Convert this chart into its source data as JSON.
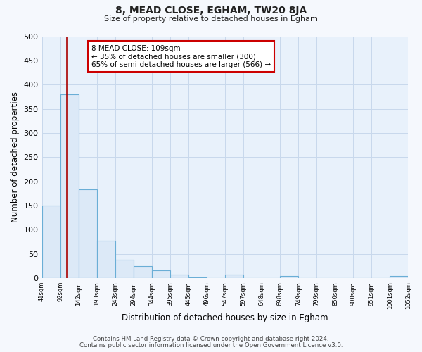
{
  "title": "8, MEAD CLOSE, EGHAM, TW20 8JA",
  "subtitle": "Size of property relative to detached houses in Egham",
  "xlabel": "Distribution of detached houses by size in Egham",
  "ylabel": "Number of detached properties",
  "bar_edges": [
    41,
    92,
    142,
    193,
    243,
    294,
    344,
    395,
    445,
    496,
    547,
    597,
    648,
    698,
    749,
    799,
    850,
    900,
    951,
    1001,
    1052
  ],
  "bar_heights": [
    150,
    380,
    183,
    77,
    38,
    25,
    16,
    7,
    2,
    0,
    7,
    0,
    0,
    5,
    0,
    0,
    0,
    0,
    0,
    5
  ],
  "bar_color": "#dce9f7",
  "bar_edge_color": "#6aaed6",
  "red_line_x": 109,
  "annotation_title": "8 MEAD CLOSE: 109sqm",
  "annotation_line1": "← 35% of detached houses are smaller (300)",
  "annotation_line2": "65% of semi-detached houses are larger (566) →",
  "annotation_box_facecolor": "#ffffff",
  "annotation_border_color": "#cc0000",
  "ylim": [
    0,
    500
  ],
  "yticks": [
    0,
    50,
    100,
    150,
    200,
    250,
    300,
    350,
    400,
    450,
    500
  ],
  "tick_labels": [
    "41sqm",
    "92sqm",
    "142sqm",
    "193sqm",
    "243sqm",
    "294sqm",
    "344sqm",
    "395sqm",
    "445sqm",
    "496sqm",
    "547sqm",
    "597sqm",
    "648sqm",
    "698sqm",
    "749sqm",
    "799sqm",
    "850sqm",
    "900sqm",
    "951sqm",
    "1001sqm",
    "1052sqm"
  ],
  "footer1": "Contains HM Land Registry data © Crown copyright and database right 2024.",
  "footer2": "Contains public sector information licensed under the Open Government Licence v3.0.",
  "fig_facecolor": "#f5f8fd",
  "plot_bg_color": "#e8f1fb",
  "grid_color": "#c8d8ec"
}
